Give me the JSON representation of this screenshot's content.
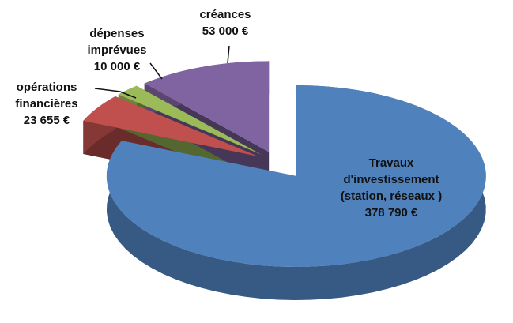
{
  "chart_data": {
    "type": "pie3d",
    "categories": [
      "Travaux d'investissement (station, réseaux )",
      "opérations financières",
      "dépenses imprévues",
      "créances"
    ],
    "values": [
      378790,
      23655,
      10000,
      53000
    ],
    "value_labels": [
      "378 790 €",
      "23 655 €",
      "10 000 €",
      "53 000 €"
    ],
    "colors": [
      "#4f81bd",
      "#c0504d",
      "#9bbb59",
      "#8064a2"
    ],
    "start_angle": -90,
    "direction": "clockwise"
  }
}
